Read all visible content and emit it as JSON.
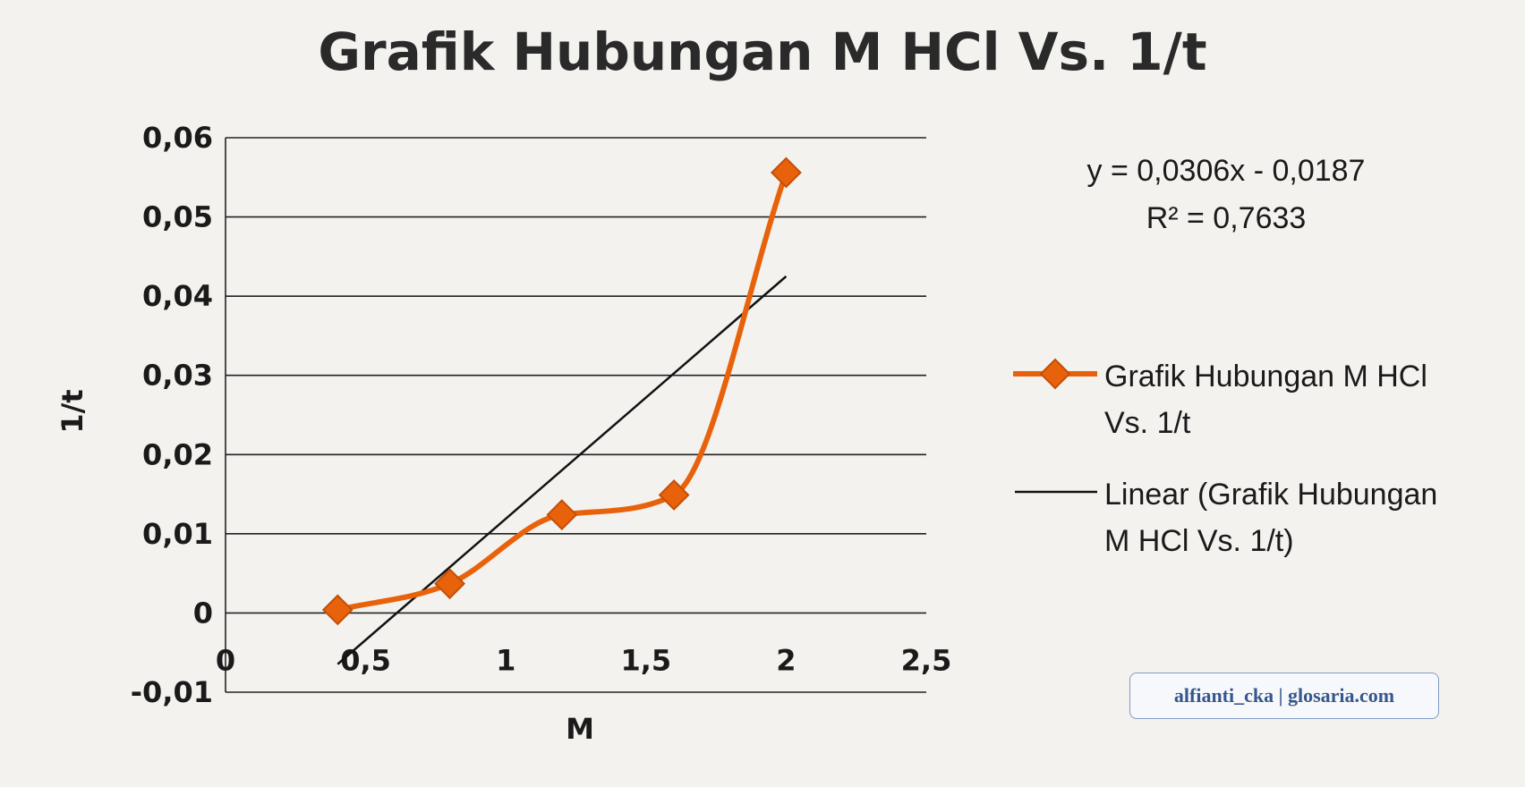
{
  "chart_data": {
    "type": "line",
    "title": "Grafik Hubungan M HCl Vs. 1/t",
    "xlabel": "M",
    "ylabel": "1/t",
    "xlim": [
      0,
      2.5
    ],
    "ylim": [
      -0.01,
      0.06
    ],
    "x_ticks": [
      "0",
      "0,5",
      "1",
      "1,5",
      "2",
      "2,5"
    ],
    "y_ticks": [
      "0,06",
      "0,05",
      "0,04",
      "0,03",
      "0,02",
      "0,01",
      "0",
      "-0,01"
    ],
    "x_tick_values": [
      0,
      0.5,
      1,
      1.5,
      2,
      2.5
    ],
    "y_tick_values": [
      0.06,
      0.05,
      0.04,
      0.03,
      0.02,
      0.01,
      0,
      -0.01
    ],
    "grid": true,
    "series": [
      {
        "name": "Grafik Hubungan M HCl Vs. 1/t",
        "color": "#e8620c",
        "marker": "diamond",
        "smooth": true,
        "x": [
          0.4,
          0.8,
          1.2,
          1.6,
          2.0
        ],
        "y": [
          0.0004,
          0.0037,
          0.0124,
          0.0149,
          0.0556
        ]
      }
    ],
    "trendline": {
      "name": "Linear (Grafik Hubungan M HCl Vs. 1/t)",
      "color": "#111111",
      "slope": 0.0306,
      "intercept": -0.0187,
      "x_range": [
        0.4,
        2.0
      ],
      "equation": "y = 0,0306x - 0,0187",
      "r_squared": "R² = 0,7633"
    },
    "legend": {
      "position": "right",
      "entries": [
        {
          "lines": [
            "Grafik Hubungan M HCl",
            "Vs. 1/t"
          ]
        },
        {
          "lines": [
            "Linear (Grafik Hubungan",
            "M HCl Vs. 1/t)"
          ]
        }
      ]
    }
  },
  "watermark": "alfianti_cka  |  glosaria.com"
}
